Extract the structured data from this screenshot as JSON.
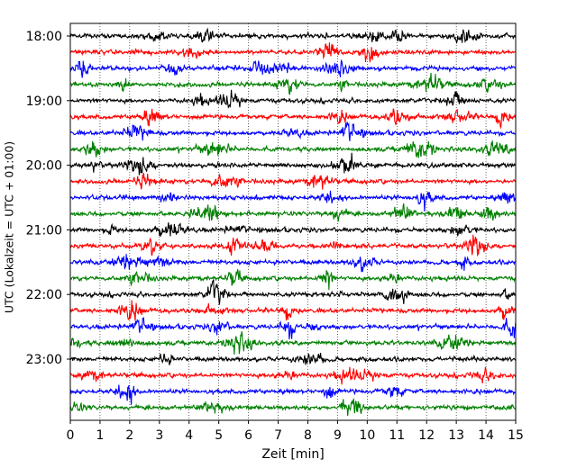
{
  "chart_data": {
    "type": "line",
    "title": "",
    "xlabel": "Zeit  [min]",
    "ylabel": "UTC (Lokalzeit = UTC + 01:00)",
    "xlim": [
      0,
      15
    ],
    "x_ticks": [
      "0",
      "1",
      "2",
      "3",
      "4",
      "5",
      "6",
      "7",
      "8",
      "9",
      "10",
      "11",
      "12",
      "13",
      "14",
      "15"
    ],
    "y_ticks": [
      "18:00",
      "19:00",
      "20:00",
      "21:00",
      "22:00",
      "23:00"
    ],
    "trace_colors": [
      "#000000",
      "#ff0000",
      "#0000ff",
      "#008000"
    ],
    "trace_start_times": [
      "18:00",
      "18:15",
      "18:30",
      "18:45",
      "19:00",
      "19:15",
      "19:30",
      "19:45",
      "20:00",
      "20:15",
      "20:30",
      "20:45",
      "21:00",
      "21:15",
      "21:30",
      "21:45",
      "22:00",
      "22:15",
      "22:30",
      "22:45",
      "23:00",
      "23:15",
      "23:30",
      "23:45"
    ],
    "grid": "vertical dotted lines at each minute",
    "legend": "none"
  }
}
